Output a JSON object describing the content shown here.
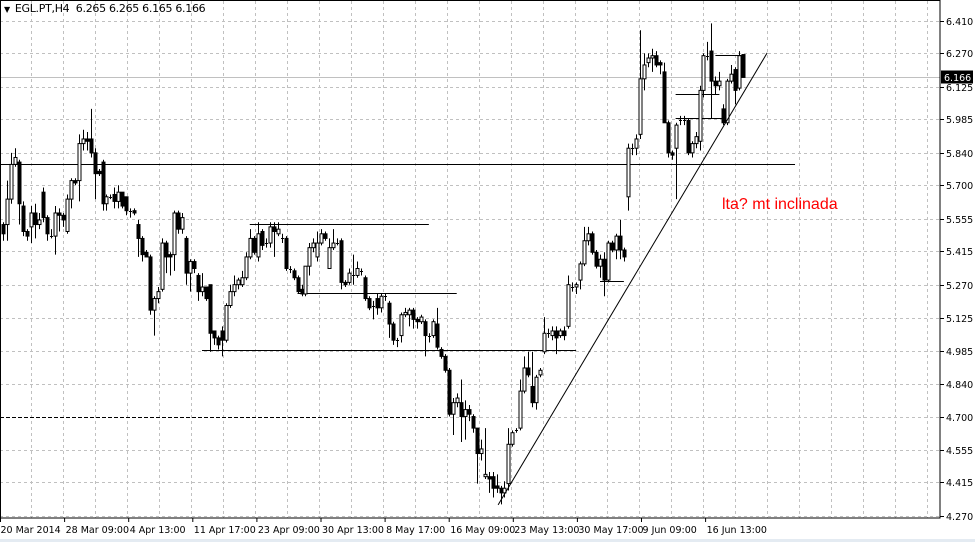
{
  "header": {
    "symbol": "EGL.PT,H4",
    "ohlc": "6.265 6.265 6.165 6.166"
  },
  "annotation": {
    "text": "lta? mt inclinada",
    "color": "#ff0000"
  },
  "chart_data": {
    "type": "candlestick",
    "symbol": "EGL.PT",
    "timeframe": "H4",
    "grid": true,
    "ylim": [
      4.27,
      6.41
    ],
    "y_ticks": [
      "6.410",
      "6.270",
      "6.125",
      "5.985",
      "5.840",
      "5.700",
      "5.555",
      "5.415",
      "5.270",
      "5.125",
      "4.985",
      "4.840",
      "4.700",
      "4.555",
      "4.415",
      "4.270"
    ],
    "x_ticks": [
      "20 Mar 2014",
      "28 Mar 09:00",
      "4 Apr 13:00",
      "11 Apr 17:00",
      "23 Apr 09:00",
      "30 Apr 13:00",
      "8 May 17:00",
      "16 May 09:00",
      "23 May 13:00",
      "30 May 17:00",
      "9 Jun 09:00",
      "16 Jun 13:00"
    ],
    "current_price": "6.166",
    "colors": {
      "bull_body": "#ffffff",
      "bear_body": "#000000",
      "wick": "#000000",
      "grid": "#c0c0c0",
      "price_line": "#c0c0c0",
      "price_label_bg": "#000000"
    },
    "ohlc_columns": [
      "open",
      "high",
      "low",
      "close"
    ],
    "candles": [
      [
        5.53,
        5.54,
        5.46,
        5.49
      ],
      [
        5.53,
        5.72,
        5.46,
        5.64
      ],
      [
        5.64,
        5.84,
        5.62,
        5.79
      ],
      [
        5.79,
        5.86,
        5.78,
        5.82
      ],
      [
        5.8,
        5.81,
        5.53,
        5.62
      ],
      [
        5.61,
        5.63,
        5.48,
        5.5
      ],
      [
        5.5,
        5.51,
        5.46,
        5.48
      ],
      [
        5.52,
        5.61,
        5.45,
        5.58
      ],
      [
        5.58,
        5.62,
        5.47,
        5.53
      ],
      [
        5.53,
        5.58,
        5.51,
        5.55
      ],
      [
        5.67,
        5.69,
        5.54,
        5.56
      ],
      [
        5.56,
        5.57,
        5.46,
        5.49
      ],
      [
        5.48,
        5.51,
        5.47,
        5.48
      ],
      [
        5.48,
        5.61,
        5.4,
        5.58
      ],
      [
        5.58,
        5.6,
        5.5,
        5.57
      ],
      [
        5.57,
        5.58,
        5.52,
        5.55
      ],
      [
        5.5,
        5.66,
        5.49,
        5.64
      ],
      [
        5.64,
        5.73,
        5.6,
        5.72
      ],
      [
        5.72,
        5.73,
        5.7,
        5.71
      ],
      [
        5.72,
        5.92,
        5.63,
        5.88
      ],
      [
        5.88,
        5.94,
        5.85,
        5.9
      ],
      [
        5.9,
        5.93,
        5.85,
        5.89
      ],
      [
        5.9,
        6.03,
        5.82,
        5.84
      ],
      [
        5.84,
        5.86,
        5.64,
        5.75
      ],
      [
        5.76,
        5.77,
        5.74,
        5.75
      ],
      [
        5.8,
        5.81,
        5.59,
        5.62
      ],
      [
        5.62,
        5.66,
        5.59,
        5.65
      ],
      [
        5.65,
        5.66,
        5.64,
        5.65
      ],
      [
        5.66,
        5.69,
        5.6,
        5.63
      ],
      [
        5.63,
        5.7,
        5.6,
        5.67
      ],
      [
        5.67,
        5.67,
        5.6,
        5.61
      ],
      [
        5.65,
        5.65,
        5.57,
        5.59
      ],
      [
        5.59,
        5.6,
        5.56,
        5.59
      ],
      [
        5.59,
        5.6,
        5.57,
        5.58
      ],
      [
        5.53,
        5.55,
        5.39,
        5.47
      ],
      [
        5.47,
        5.48,
        5.37,
        5.4
      ],
      [
        5.41,
        5.42,
        5.39,
        5.39
      ],
      [
        5.39,
        5.4,
        5.14,
        5.16
      ],
      [
        5.16,
        5.22,
        5.05,
        5.21
      ],
      [
        5.21,
        5.26,
        5.19,
        5.24
      ],
      [
        5.25,
        5.47,
        5.24,
        5.45
      ],
      [
        5.45,
        5.46,
        5.32,
        5.39
      ],
      [
        5.4,
        5.41,
        5.31,
        5.39
      ],
      [
        5.4,
        5.59,
        5.33,
        5.58
      ],
      [
        5.58,
        5.59,
        5.49,
        5.51
      ],
      [
        5.51,
        5.58,
        5.49,
        5.56
      ],
      [
        5.47,
        5.48,
        5.27,
        5.32
      ],
      [
        5.32,
        5.38,
        5.24,
        5.37
      ],
      [
        5.37,
        5.38,
        5.32,
        5.34
      ],
      [
        5.31,
        5.32,
        5.2,
        5.24
      ],
      [
        5.24,
        5.32,
        5.22,
        5.26
      ],
      [
        5.26,
        5.26,
        5.2,
        5.21
      ],
      [
        5.27,
        5.27,
        4.98,
        5.06
      ],
      [
        5.07,
        5.07,
        5.01,
        5.04
      ],
      [
        5.04,
        5.05,
        4.99,
        5.01
      ],
      [
        5.07,
        5.09,
        4.96,
        5.03
      ],
      [
        5.03,
        5.19,
        5.02,
        5.18
      ],
      [
        5.18,
        5.27,
        5.17,
        5.24
      ],
      [
        5.24,
        5.31,
        5.22,
        5.27
      ],
      [
        5.27,
        5.3,
        5.25,
        5.29
      ],
      [
        5.27,
        5.33,
        5.26,
        5.3
      ],
      [
        5.3,
        5.41,
        5.29,
        5.39
      ],
      [
        5.39,
        5.51,
        5.38,
        5.47
      ],
      [
        5.47,
        5.48,
        5.4,
        5.41
      ],
      [
        5.39,
        5.54,
        5.37,
        5.49
      ],
      [
        5.5,
        5.51,
        5.42,
        5.44
      ],
      [
        5.45,
        5.47,
        5.43,
        5.45
      ],
      [
        5.45,
        5.54,
        5.43,
        5.52
      ],
      [
        5.52,
        5.54,
        5.39,
        5.5
      ],
      [
        5.49,
        5.54,
        5.48,
        5.51
      ],
      [
        5.47,
        5.49,
        5.45,
        5.47
      ],
      [
        5.47,
        5.48,
        5.33,
        5.34
      ],
      [
        5.34,
        5.35,
        5.32,
        5.34
      ],
      [
        5.33,
        5.34,
        5.29,
        5.3
      ],
      [
        5.3,
        5.31,
        5.23,
        5.24
      ],
      [
        5.25,
        5.27,
        5.22,
        5.23
      ],
      [
        5.23,
        5.35,
        5.22,
        5.35
      ],
      [
        5.35,
        5.45,
        5.31,
        5.43
      ],
      [
        5.43,
        5.47,
        5.41,
        5.45
      ],
      [
        5.39,
        5.5,
        5.37,
        5.45
      ],
      [
        5.45,
        5.51,
        5.44,
        5.49
      ],
      [
        5.49,
        5.5,
        5.46,
        5.47
      ],
      [
        5.34,
        5.47,
        5.34,
        5.43
      ],
      [
        5.43,
        5.51,
        5.42,
        5.45
      ],
      [
        5.45,
        5.47,
        5.44,
        5.45
      ],
      [
        5.46,
        5.47,
        5.25,
        5.28
      ],
      [
        5.28,
        5.29,
        5.26,
        5.27
      ],
      [
        5.28,
        5.34,
        5.27,
        5.32
      ],
      [
        5.31,
        5.4,
        5.27,
        5.31
      ],
      [
        5.31,
        5.37,
        5.3,
        5.34
      ],
      [
        5.33,
        5.34,
        5.31,
        5.33
      ],
      [
        5.3,
        5.31,
        5.2,
        5.21
      ],
      [
        5.21,
        5.22,
        5.16,
        5.17
      ],
      [
        5.18,
        5.2,
        5.12,
        5.18
      ],
      [
        5.21,
        5.23,
        5.14,
        5.17
      ],
      [
        5.17,
        5.23,
        5.15,
        5.22
      ],
      [
        5.22,
        5.23,
        5.2,
        5.22
      ],
      [
        5.19,
        5.2,
        5.04,
        5.1
      ],
      [
        5.1,
        5.11,
        5.01,
        5.03
      ],
      [
        5.03,
        5.04,
        5.0,
        5.03
      ],
      [
        5.05,
        5.15,
        5.02,
        5.14
      ],
      [
        5.14,
        5.17,
        5.13,
        5.15
      ],
      [
        5.14,
        5.17,
        5.09,
        5.16
      ],
      [
        5.16,
        5.17,
        5.08,
        5.12
      ],
      [
        5.12,
        5.13,
        5.08,
        5.11
      ],
      [
        5.11,
        5.14,
        5.1,
        5.13
      ],
      [
        5.11,
        5.12,
        4.96,
        5.05
      ],
      [
        5.05,
        5.06,
        5.02,
        5.05
      ],
      [
        5.05,
        5.12,
        5.04,
        5.11
      ],
      [
        5.1,
        5.17,
        4.99,
        5.0
      ],
      [
        4.99,
        5.0,
        4.95,
        4.96
      ],
      [
        4.96,
        4.97,
        4.89,
        4.9
      ],
      [
        4.9,
        4.91,
        4.7,
        4.71
      ],
      [
        4.71,
        4.78,
        4.62,
        4.76
      ],
      [
        4.76,
        4.8,
        4.74,
        4.78
      ],
      [
        4.76,
        4.86,
        4.59,
        4.7
      ],
      [
        4.7,
        4.77,
        4.6,
        4.73
      ],
      [
        4.73,
        4.75,
        4.68,
        4.71
      ],
      [
        4.7,
        4.71,
        4.63,
        4.65
      ],
      [
        4.65,
        4.65,
        4.41,
        4.54
      ],
      [
        4.54,
        4.6,
        4.51,
        4.56
      ],
      [
        4.44,
        4.65,
        4.43,
        4.45
      ],
      [
        4.44,
        4.46,
        4.37,
        4.43
      ],
      [
        4.44,
        4.46,
        4.35,
        4.39
      ],
      [
        4.4,
        4.45,
        4.37,
        4.39
      ],
      [
        4.39,
        4.4,
        4.32,
        4.37
      ],
      [
        4.37,
        4.42,
        4.35,
        4.39
      ],
      [
        4.41,
        4.65,
        4.38,
        4.58
      ],
      [
        4.58,
        4.64,
        4.57,
        4.63
      ],
      [
        4.64,
        4.65,
        4.63,
        4.64
      ],
      [
        4.65,
        4.86,
        4.64,
        4.81
      ],
      [
        4.81,
        4.96,
        4.8,
        4.91
      ],
      [
        4.91,
        4.98,
        4.87,
        4.88
      ],
      [
        4.83,
        4.98,
        4.74,
        4.76
      ],
      [
        4.76,
        4.88,
        4.73,
        4.87
      ],
      [
        4.88,
        4.91,
        4.87,
        4.9
      ],
      [
        4.98,
        5.13,
        4.97,
        5.06
      ],
      [
        5.06,
        5.08,
        5.04,
        5.06
      ],
      [
        5.05,
        5.09,
        5.03,
        5.07
      ],
      [
        5.07,
        5.09,
        4.97,
        5.04
      ],
      [
        5.05,
        5.08,
        5.04,
        5.07
      ],
      [
        5.07,
        5.09,
        5.03,
        5.05
      ],
      [
        5.09,
        5.31,
        5.08,
        5.27
      ],
      [
        5.26,
        5.28,
        5.24,
        5.26
      ],
      [
        5.26,
        5.28,
        5.23,
        5.27
      ],
      [
        5.29,
        5.37,
        5.25,
        5.36
      ],
      [
        5.36,
        5.52,
        5.35,
        5.46
      ],
      [
        5.46,
        5.52,
        5.44,
        5.49
      ],
      [
        5.49,
        5.5,
        5.4,
        5.41
      ],
      [
        5.41,
        5.42,
        5.34,
        5.35
      ],
      [
        5.35,
        5.4,
        5.3,
        5.38
      ],
      [
        5.38,
        5.41,
        5.22,
        5.29
      ],
      [
        5.29,
        5.46,
        5.28,
        5.45
      ],
      [
        5.45,
        5.46,
        5.41,
        5.42
      ],
      [
        5.42,
        5.49,
        5.38,
        5.48
      ],
      [
        5.48,
        5.55,
        5.38,
        5.42
      ],
      [
        5.42,
        5.43,
        5.37,
        5.39
      ],
      [
        5.65,
        5.88,
        5.59,
        5.86
      ],
      [
        5.86,
        5.88,
        5.83,
        5.86
      ],
      [
        5.86,
        5.92,
        5.83,
        5.9
      ],
      [
        5.92,
        6.37,
        5.9,
        6.16
      ],
      [
        6.16,
        6.27,
        6.11,
        6.22
      ],
      [
        6.23,
        6.27,
        6.21,
        6.25
      ],
      [
        6.25,
        6.29,
        6.19,
        6.26
      ],
      [
        6.26,
        6.28,
        6.21,
        6.22
      ],
      [
        6.23,
        6.24,
        6.18,
        6.22
      ],
      [
        6.19,
        6.23,
        5.97,
        5.97
      ],
      [
        5.97,
        5.98,
        5.82,
        5.84
      ],
      [
        5.84,
        5.85,
        5.81,
        5.83
      ],
      [
        5.86,
        5.97,
        5.64,
        5.96
      ],
      [
        5.98,
        6.0,
        5.96,
        5.98
      ],
      [
        5.98,
        6.0,
        5.96,
        5.98
      ],
      [
        5.98,
        5.99,
        5.83,
        5.84
      ],
      [
        5.84,
        5.89,
        5.82,
        5.88
      ],
      [
        5.88,
        5.93,
        5.86,
        5.91
      ],
      [
        5.89,
        6.13,
        5.85,
        6.11
      ],
      [
        6.11,
        6.27,
        6.08,
        6.26
      ],
      [
        6.26,
        6.32,
        6.24,
        6.26
      ],
      [
        6.28,
        6.4,
        5.99,
        6.15
      ],
      [
        6.15,
        6.17,
        6.09,
        6.13
      ],
      [
        6.13,
        6.19,
        6.11,
        6.15
      ],
      [
        6.03,
        6.05,
        5.96,
        5.97
      ],
      [
        5.97,
        6.16,
        5.96,
        6.15
      ],
      [
        6.15,
        6.22,
        6.14,
        6.18
      ],
      [
        6.2,
        6.21,
        6.05,
        6.11
      ],
      [
        6.12,
        6.28,
        6.11,
        6.26
      ],
      [
        6.265,
        6.265,
        6.165,
        6.166
      ]
    ],
    "horizontal_lines": [
      {
        "price": 5.792,
        "from_bar": 0,
        "to_bar": 199,
        "style": "solid"
      },
      {
        "price": 4.7,
        "from_bar": 0,
        "to_bar": 110,
        "style": "dashed"
      },
      {
        "price": 5.532,
        "from_bar": 62,
        "to_bar": 107,
        "style": "solid"
      },
      {
        "price": 5.234,
        "from_bar": 74,
        "to_bar": 114,
        "style": "solid"
      },
      {
        "price": 4.988,
        "from_bar": 50,
        "to_bar": 144,
        "style": "solid"
      },
      {
        "price": 5.286,
        "from_bar": 150,
        "to_bar": 156,
        "style": "solid"
      },
      {
        "price": 6.094,
        "from_bar": 169,
        "to_bar": 180,
        "style": "solid"
      },
      {
        "price": 5.991,
        "from_bar": 169,
        "to_bar": 181,
        "style": "solid"
      },
      {
        "price": 6.263,
        "from_bar": 179,
        "to_bar": 186,
        "style": "solid"
      }
    ],
    "trendline": {
      "from": {
        "bar": 124.4,
        "price": 4.318
      },
      "to": {
        "bar": 192,
        "price": 6.272
      }
    }
  }
}
